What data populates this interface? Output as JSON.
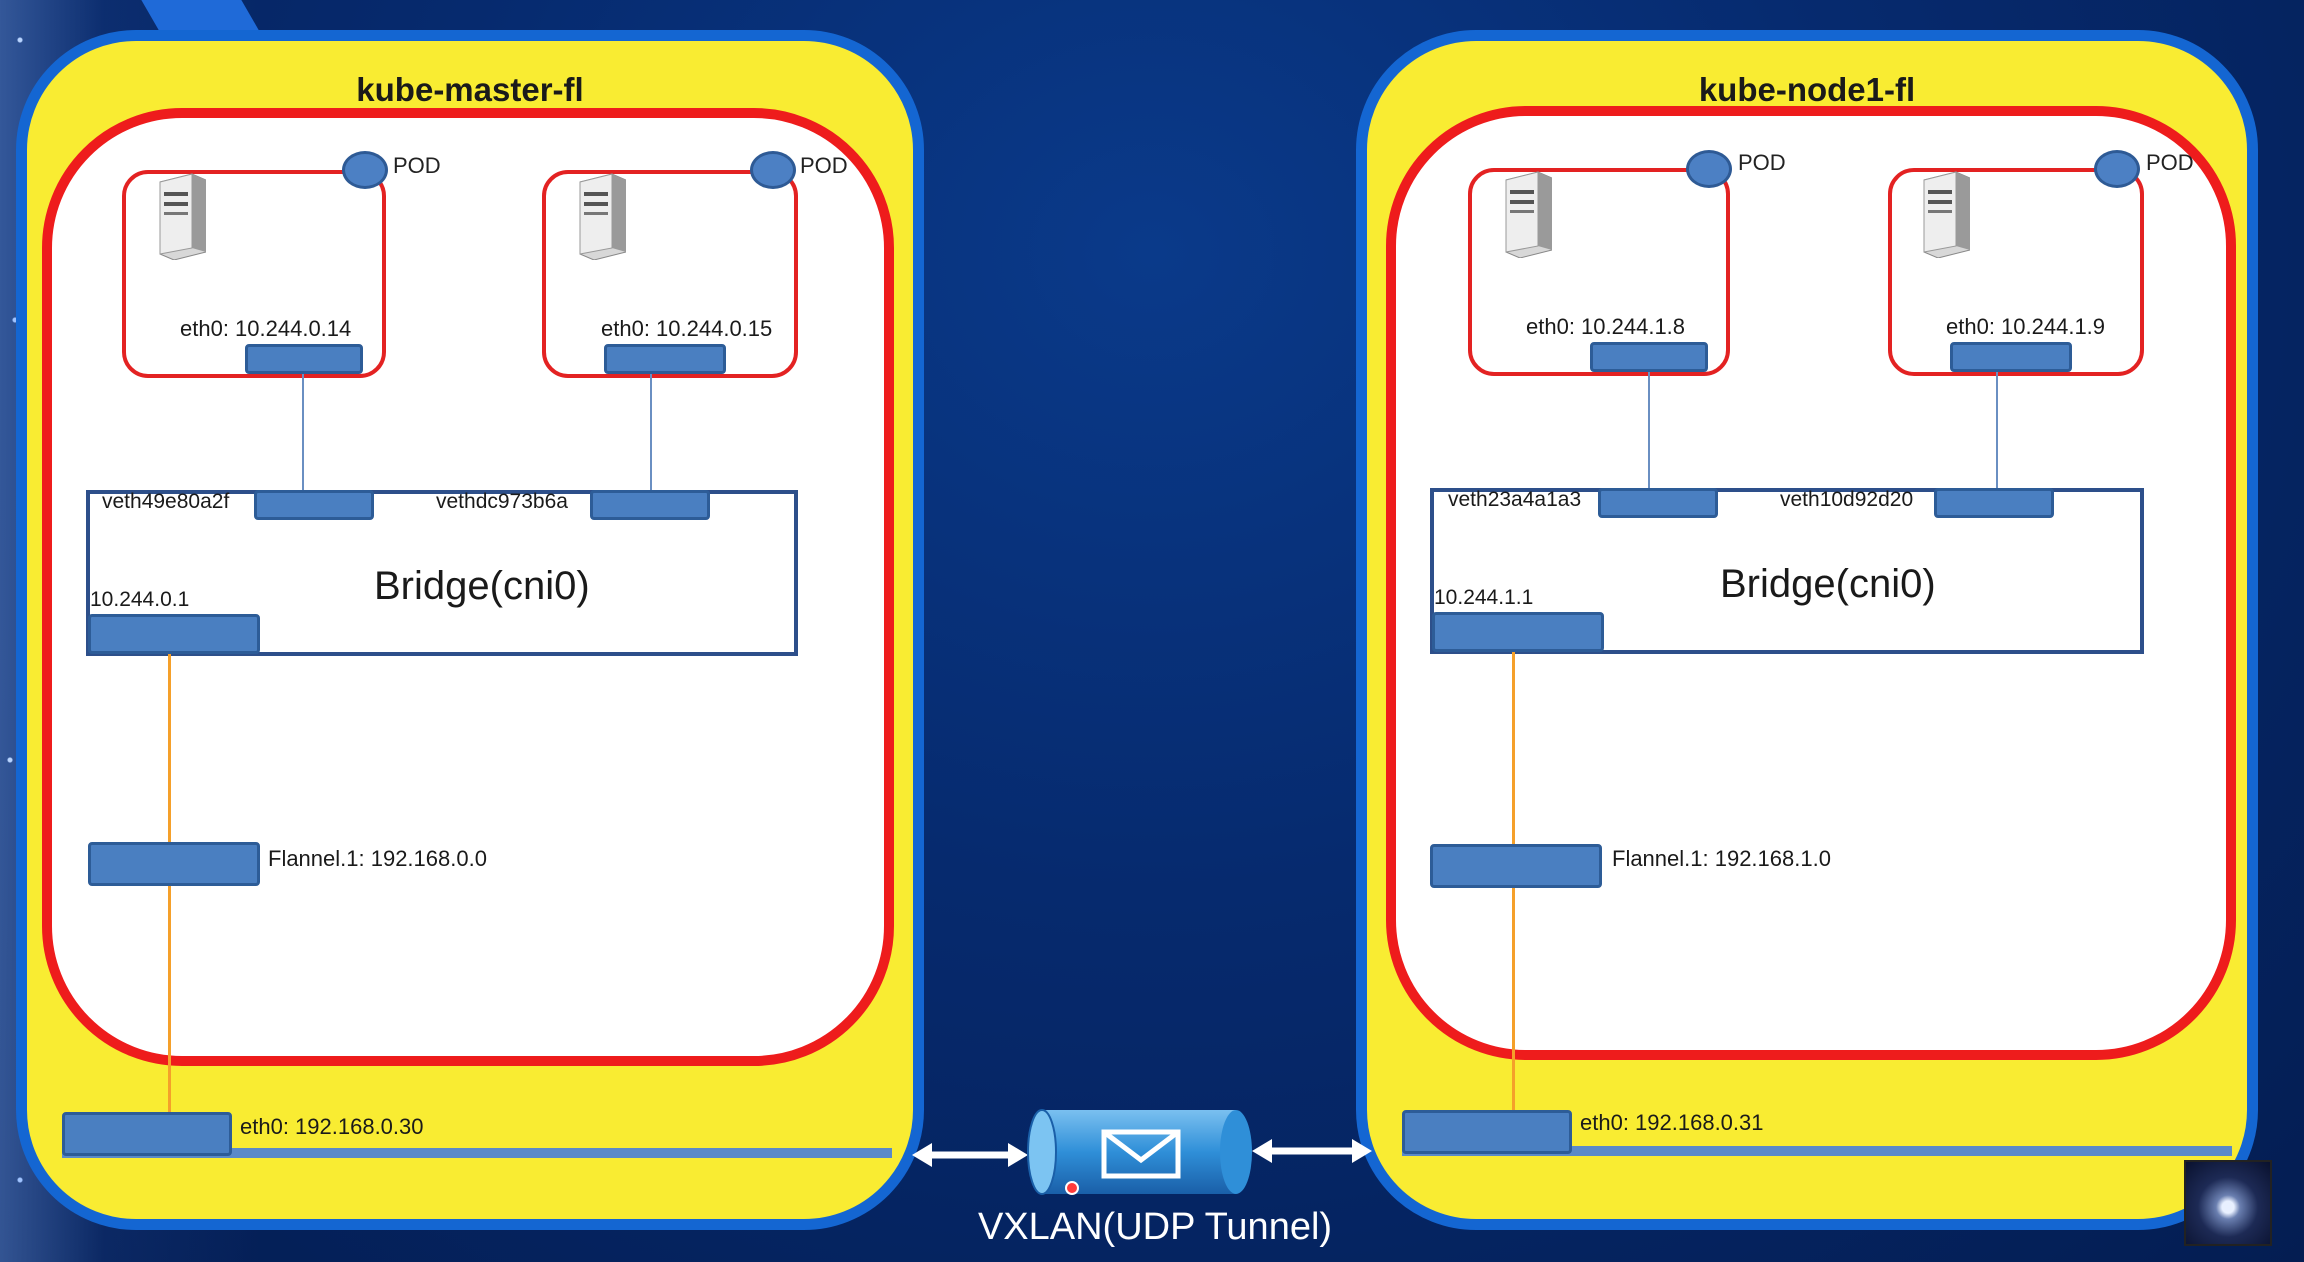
{
  "hosts": [
    {
      "title": "kube-master-fl",
      "pods": [
        {
          "label": "POD",
          "eth": "eth0: 10.244.0.14"
        },
        {
          "label": "POD",
          "eth": "eth0: 10.244.0.15"
        }
      ],
      "veths": [
        "veth49e80a2f",
        "vethdc973b6a"
      ],
      "bridge_title": "Bridge(cni0)",
      "bridge_ip": "10.244.0.1",
      "flannel": "Flannel.1:  192.168.0.0",
      "eth0": "eth0:  192.168.0.30"
    },
    {
      "title": "kube-node1-fl",
      "pods": [
        {
          "label": "POD",
          "eth": "eth0: 10.244.1.8"
        },
        {
          "label": "POD",
          "eth": "eth0: 10.244.1.9"
        }
      ],
      "veths": [
        "veth23a4a1a3",
        "veth10d92d20"
      ],
      "bridge_title": "Bridge(cni0)",
      "bridge_ip": "10.244.1.1",
      "flannel": "Flannel.1:  192.168.1.0",
      "eth0": "eth0:  192.168.0.31"
    }
  ],
  "tunnel": {
    "label": "VXLAN(UDP Tunnel)",
    "icon": "envelope-icon"
  },
  "colors": {
    "host_fill": "#f9ec32",
    "host_border": "#1466d2",
    "inner_border": "#ee1c1c",
    "interface": "#4a7fc1",
    "link_orange": "#f5a02a"
  }
}
